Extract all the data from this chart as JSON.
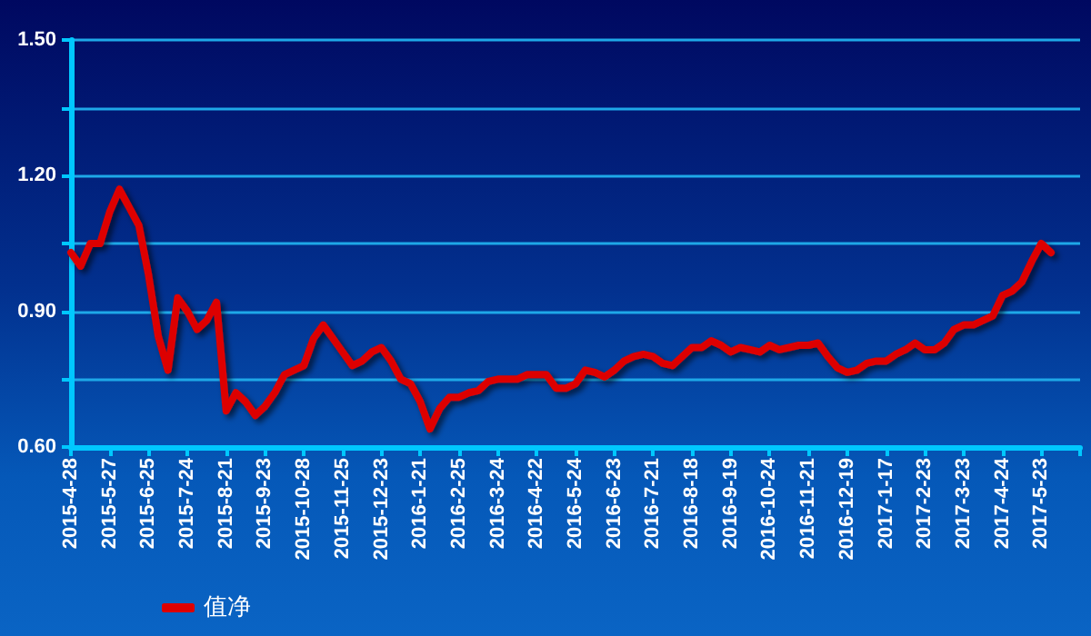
{
  "chart_data": {
    "type": "line",
    "categories": [
      "2015-4-28",
      null,
      null,
      null,
      "2015-5-27",
      null,
      null,
      null,
      "2015-6-25",
      null,
      null,
      null,
      "2015-7-24",
      null,
      null,
      null,
      "2015-8-21",
      null,
      null,
      null,
      "2015-9-23",
      null,
      null,
      null,
      "2015-10-28",
      null,
      null,
      null,
      "2015-11-25",
      null,
      null,
      null,
      "2015-12-23",
      null,
      null,
      null,
      "2016-1-21",
      null,
      null,
      null,
      "2016-2-25",
      null,
      null,
      null,
      "2016-3-24",
      null,
      null,
      null,
      "2016-4-22",
      null,
      null,
      null,
      "2016-5-24",
      null,
      null,
      null,
      "2016-6-23",
      null,
      null,
      null,
      "2016-7-21",
      null,
      null,
      null,
      "2016-8-18",
      null,
      null,
      null,
      "2016-9-19",
      null,
      null,
      null,
      "2016-10-24",
      null,
      null,
      null,
      "2016-11-21",
      null,
      null,
      null,
      "2016-12-19",
      null,
      null,
      null,
      "2017-1-17",
      null,
      null,
      null,
      "2017-2-23",
      null,
      null,
      null,
      "2017-3-23",
      null,
      null,
      null,
      "2017-4-24",
      null,
      null,
      null,
      "2017-5-23",
      null,
      null,
      null,
      null
    ],
    "series": [
      {
        "name": "值净",
        "color": "#dd0000",
        "values": [
          1.03,
          1.0,
          1.05,
          1.05,
          1.12,
          1.17,
          1.13,
          1.09,
          0.98,
          0.845,
          0.77,
          0.93,
          0.9,
          0.86,
          0.88,
          0.92,
          0.68,
          0.72,
          0.7,
          0.67,
          0.69,
          0.72,
          0.76,
          0.77,
          0.78,
          0.84,
          0.87,
          0.84,
          0.81,
          0.78,
          0.79,
          0.81,
          0.82,
          0.79,
          0.75,
          0.74,
          0.7,
          0.64,
          0.685,
          0.71,
          0.71,
          0.72,
          0.725,
          0.745,
          0.75,
          0.75,
          0.75,
          0.76,
          0.76,
          0.76,
          0.73,
          0.73,
          0.74,
          0.77,
          0.765,
          0.755,
          0.77,
          0.79,
          0.8,
          0.805,
          0.8,
          0.785,
          0.78,
          0.8,
          0.82,
          0.82,
          0.835,
          0.825,
          0.81,
          0.82,
          0.815,
          0.81,
          0.825,
          0.815,
          0.82,
          0.825,
          0.825,
          0.83,
          0.8,
          0.775,
          0.765,
          0.77,
          0.785,
          0.79,
          0.79,
          0.805,
          0.815,
          0.83,
          0.815,
          0.815,
          0.83,
          0.86,
          0.87,
          0.87,
          0.88,
          0.89,
          0.935,
          0.945,
          0.965,
          1.01,
          1.05,
          1.03,
          null,
          null,
          null
        ]
      }
    ],
    "ylim": [
      0.6,
      1.5
    ],
    "yticks": [
      {
        "value": 0.6,
        "label": "0.60"
      },
      {
        "value": 0.75,
        "label": null
      },
      {
        "value": 0.9,
        "label": "0.90"
      },
      {
        "value": 1.05,
        "label": null
      },
      {
        "value": 1.2,
        "label": "1.20"
      },
      {
        "value": 1.35,
        "label": null
      },
      {
        "value": 1.5,
        "label": "1.50"
      }
    ],
    "grid": "y",
    "legend": "bottom left",
    "marker": "none",
    "line_style": "solid"
  }
}
